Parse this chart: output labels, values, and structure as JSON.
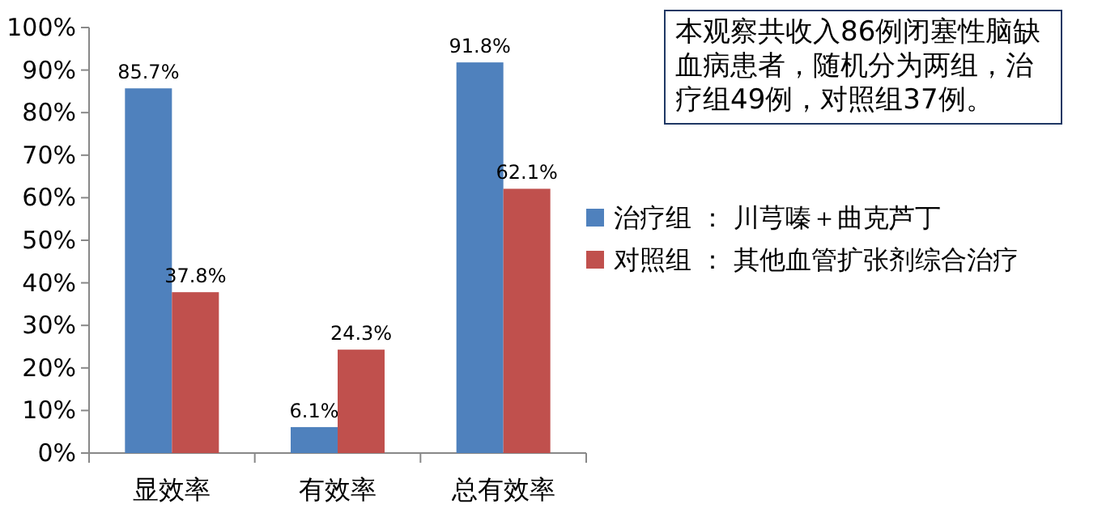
{
  "chart_data": {
    "type": "bar",
    "categories": [
      "显效率",
      "有效率",
      "总有效率"
    ],
    "series": [
      {
        "name": "治疗组 ： 川芎嗪＋曲克芦丁",
        "color": "#4f81bd",
        "values": [
          85.7,
          6.1,
          91.8
        ],
        "value_labels": [
          "85.7%",
          "6.1%",
          "91.8%"
        ]
      },
      {
        "name": "对照组 ： 其他血管扩张剂综合治疗",
        "color": "#c0504d",
        "values": [
          37.8,
          24.3,
          62.1
        ],
        "value_labels": [
          "37.8%",
          "24.3%",
          "62.1%"
        ]
      }
    ],
    "ylim": [
      0,
      100
    ],
    "yticks": [
      {
        "value": 0,
        "label": "0%"
      },
      {
        "value": 10,
        "label": "10%"
      },
      {
        "value": 20,
        "label": "20%"
      },
      {
        "value": 30,
        "label": "30%"
      },
      {
        "value": 40,
        "label": "40%"
      },
      {
        "value": 50,
        "label": "50%"
      },
      {
        "value": 60,
        "label": "60%"
      },
      {
        "value": 70,
        "label": "70%"
      },
      {
        "value": 80,
        "label": "80%"
      },
      {
        "value": 90,
        "label": "90%"
      },
      {
        "value": 100,
        "label": "100%"
      }
    ],
    "legend": "right",
    "annotations": [
      "本观察共收入86例闭塞性脑缺血病患者，随机分为两组，治疗组49例，对照组37例。"
    ]
  }
}
